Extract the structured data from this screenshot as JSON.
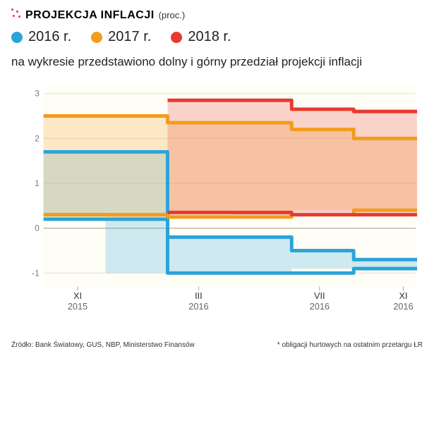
{
  "title_main": "PROJEKCJA INFLACJI",
  "title_unit": "(proc.)",
  "legend": [
    {
      "label": "2016 r.",
      "color": "#2aa3d9"
    },
    {
      "label": "2017 r.",
      "color": "#f49b1b"
    },
    {
      "label": "2018 r.",
      "color": "#e63b2e"
    }
  ],
  "subtitle": "na wykresie przedstawiono dolny i górny przedział projekcji inflacji",
  "chart": {
    "type": "step-band",
    "background": "#fefdf6",
    "grid_color": "#eadfcf",
    "zero_line_color": "#bdb6a9",
    "x_tick_interval_color": "#b0a890",
    "line_width": 5,
    "ylim": [
      -1.3,
      3.2
    ],
    "yticks": [
      -1,
      0,
      1,
      2,
      3
    ],
    "x_categories": [
      "XI 2015",
      "III 2016",
      "VII 2016",
      "XI 2016"
    ],
    "x_labels_top": [
      "XI",
      "III",
      "VII",
      "XI"
    ],
    "x_labels_bottom": [
      "2015",
      "2016",
      "2016",
      "2016"
    ],
    "fill_opacity": 0.22,
    "series": [
      {
        "name": "2016",
        "color": "#2aa3d9",
        "upper": [
          1.7,
          1.7,
          -0.2,
          -0.2,
          -0.5,
          -0.7,
          -0.7
        ],
        "lower": [
          0.2,
          0.2,
          -1.0,
          -1.0,
          -1.0,
          -0.9,
          -0.9
        ]
      },
      {
        "name": "2017",
        "color": "#f49b1b",
        "upper": [
          2.5,
          2.5,
          2.35,
          2.35,
          2.2,
          2.0,
          2.0
        ],
        "lower": [
          0.3,
          0.3,
          0.25,
          0.25,
          0.3,
          0.4,
          0.4
        ]
      },
      {
        "name": "2018",
        "color": "#e63b2e",
        "upper": [
          null,
          null,
          2.85,
          2.85,
          2.65,
          2.6,
          2.6
        ],
        "lower": [
          null,
          null,
          0.35,
          0.35,
          0.3,
          0.3,
          0.3
        ]
      }
    ]
  },
  "footer_left": "Źródło: Bank Światowy, GUS, NBP, Ministerstwo Finansów",
  "footer_right": "* obligacji hurtowych na ostatnim przetargu    ŁR"
}
